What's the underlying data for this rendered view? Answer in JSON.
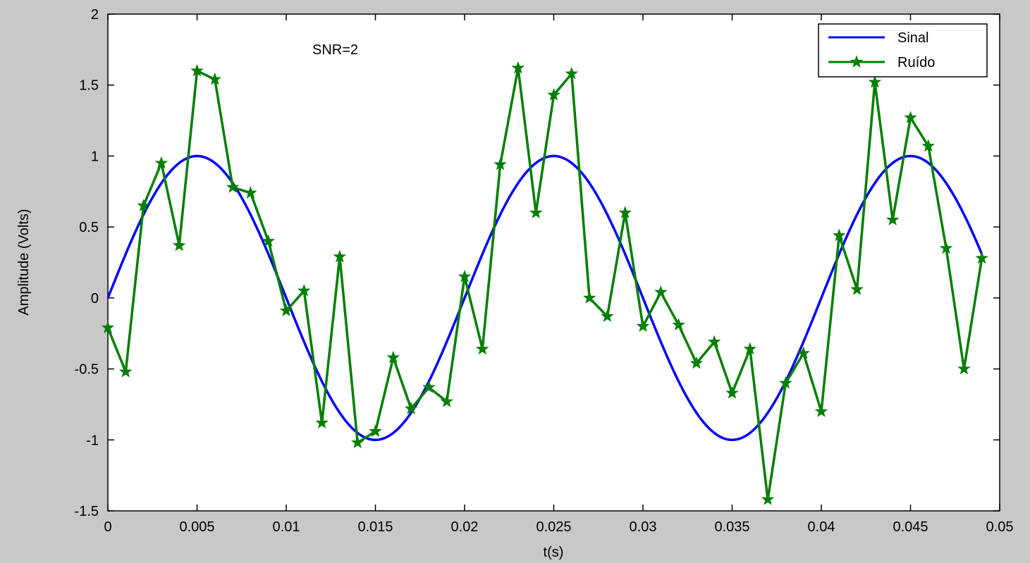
{
  "chart_data": {
    "type": "line",
    "xlabel": "t(s)",
    "ylabel": "Amplitude (Volts)",
    "xlim": [
      0,
      0.05
    ],
    "ylim": [
      -1.5,
      2
    ],
    "xticks": [
      "0",
      "0.005",
      "0.01",
      "0.015",
      "0.02",
      "0.025",
      "0.03",
      "0.035",
      "0.04",
      "0.045",
      "0.05"
    ],
    "yticks": [
      "-1.5",
      "-1",
      "-0.5",
      "0",
      "0.5",
      "1",
      "1.5",
      "2"
    ],
    "annotation": "SNR=2",
    "legend_position": "top-right",
    "grid": false,
    "series": [
      {
        "name": "Sinal",
        "color": "#0000ff",
        "marker": "none",
        "function": "sin(2*pi*50*t)",
        "x_start": 0,
        "x_end": 0.049
      },
      {
        "name": "Ruído",
        "color": "#007f00",
        "marker": "star",
        "x": [
          0,
          0.001,
          0.002,
          0.003,
          0.004,
          0.005,
          0.006,
          0.007,
          0.008,
          0.009,
          0.01,
          0.011,
          0.012,
          0.013,
          0.014,
          0.015,
          0.016,
          0.017,
          0.018,
          0.019,
          0.02,
          0.021,
          0.022,
          0.023,
          0.024,
          0.025,
          0.026,
          0.027,
          0.028,
          0.029,
          0.03,
          0.031,
          0.032,
          0.033,
          0.034,
          0.035,
          0.036,
          0.037,
          0.038,
          0.039,
          0.04,
          0.041,
          0.042,
          0.043,
          0.044,
          0.045,
          0.046,
          0.047,
          0.048,
          0.049
        ],
        "values": [
          -0.21,
          -0.52,
          0.65,
          0.95,
          0.37,
          1.6,
          1.54,
          0.78,
          0.74,
          0.4,
          -0.09,
          0.05,
          -0.88,
          0.29,
          -1.02,
          -0.94,
          -0.42,
          -0.78,
          -0.63,
          -0.73,
          0.15,
          -0.36,
          0.94,
          1.62,
          0.6,
          1.43,
          1.58,
          0.0,
          -0.13,
          0.6,
          -0.2,
          0.04,
          -0.19,
          -0.46,
          -0.31,
          -0.67,
          -0.36,
          -1.42,
          -0.6,
          -0.39,
          -0.8,
          0.44,
          0.06,
          1.52,
          0.55,
          1.27,
          1.07,
          0.35,
          -0.5,
          0.28
        ]
      }
    ]
  }
}
